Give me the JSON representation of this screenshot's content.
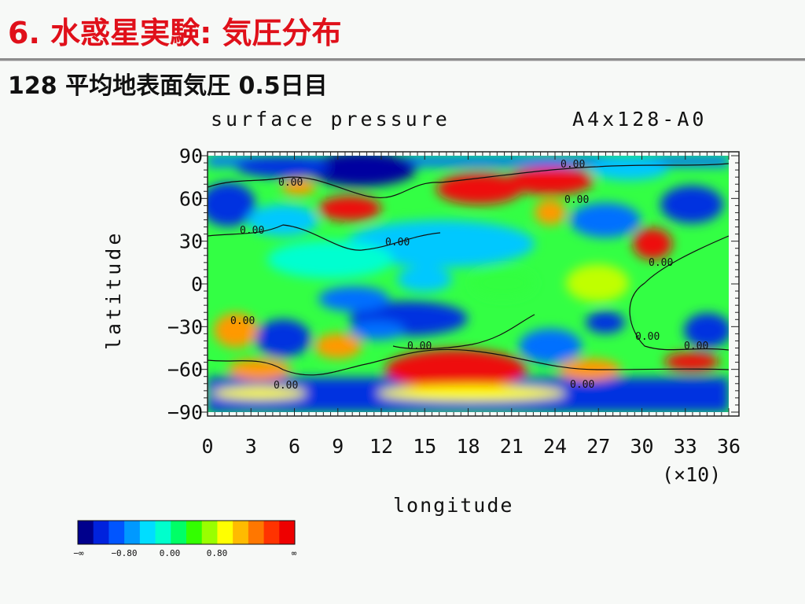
{
  "slide": {
    "title": "6. 水惑星実験: 気圧分布",
    "subtitle": "128 平均地表面気圧 0.5日目"
  },
  "chart_data": {
    "type": "heatmap",
    "title": "surface pressure",
    "subtitle": "A4x128-A0",
    "xlabel": "longitude",
    "ylabel": "latitude",
    "x_multiplier_label": "(×10)",
    "x_ticks": [
      "0",
      "3",
      "6",
      "9",
      "12",
      "15",
      "18",
      "21",
      "24",
      "27",
      "30",
      "33",
      "36"
    ],
    "y_ticks": [
      "90",
      "60",
      "30",
      "0",
      "−30",
      "−60",
      "−90"
    ],
    "xlim": [
      0,
      36
    ],
    "ylim": [
      -90,
      90
    ],
    "contour_labels": [
      "0.00",
      "0.00",
      "0.00",
      "0.00",
      "0.00",
      "0.00",
      "0.00",
      "0.00",
      "0.00",
      "0.00",
      "0.00",
      "0.00"
    ],
    "colorbar": {
      "colors": [
        "#00008c",
        "#0022dd",
        "#0055ff",
        "#0099ff",
        "#00ddff",
        "#00ffcc",
        "#00ff66",
        "#33ff00",
        "#99ff00",
        "#ffff00",
        "#ffbb00",
        "#ff7700",
        "#ff3300",
        "#ee0000"
      ],
      "labels": [
        "−∞",
        "−0.80",
        "0.00",
        "0.80",
        "∞"
      ]
    }
  }
}
